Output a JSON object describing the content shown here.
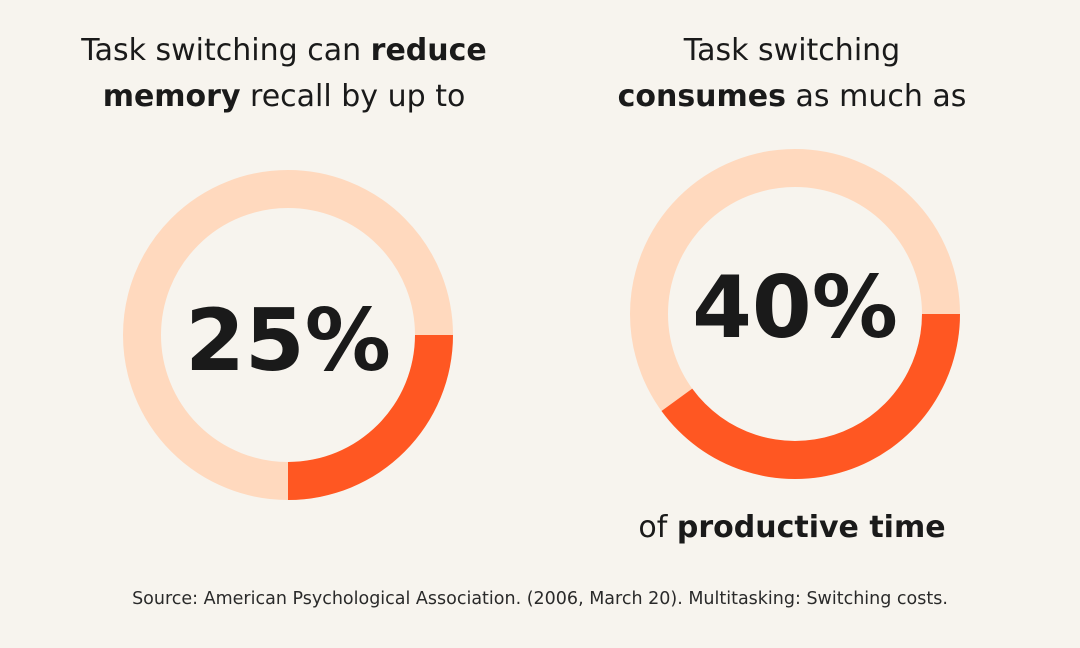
{
  "chart_data": [
    {
      "type": "pie",
      "title_parts": [
        {
          "text": "Task switching can ",
          "bold": false
        },
        {
          "text": "reduce",
          "bold": true
        },
        {
          "text": " ",
          "bold": false
        },
        {
          "text": "memory",
          "bold": true
        },
        {
          "text": " recall by up to",
          "bold": false
        }
      ],
      "value": 25,
      "value_label": "25%",
      "note_parts": [],
      "colors": {
        "filled": "#FF5722",
        "remaining": "#FFD9BE"
      }
    },
    {
      "type": "pie",
      "title_parts": [
        {
          "text": "Task switching ",
          "bold": false
        },
        {
          "text": "consumes",
          "bold": true
        },
        {
          "text": " as much as",
          "bold": false
        }
      ],
      "value": 40,
      "value_label": "40%",
      "note_parts": [
        {
          "text": "of ",
          "bold": false
        },
        {
          "text": "productive time",
          "bold": true
        }
      ],
      "colors": {
        "filled": "#FF5722",
        "remaining": "#FFD9BE"
      }
    }
  ],
  "source": "Source: American Psychological Association. (2006, March 20). Multitasking: Switching costs."
}
